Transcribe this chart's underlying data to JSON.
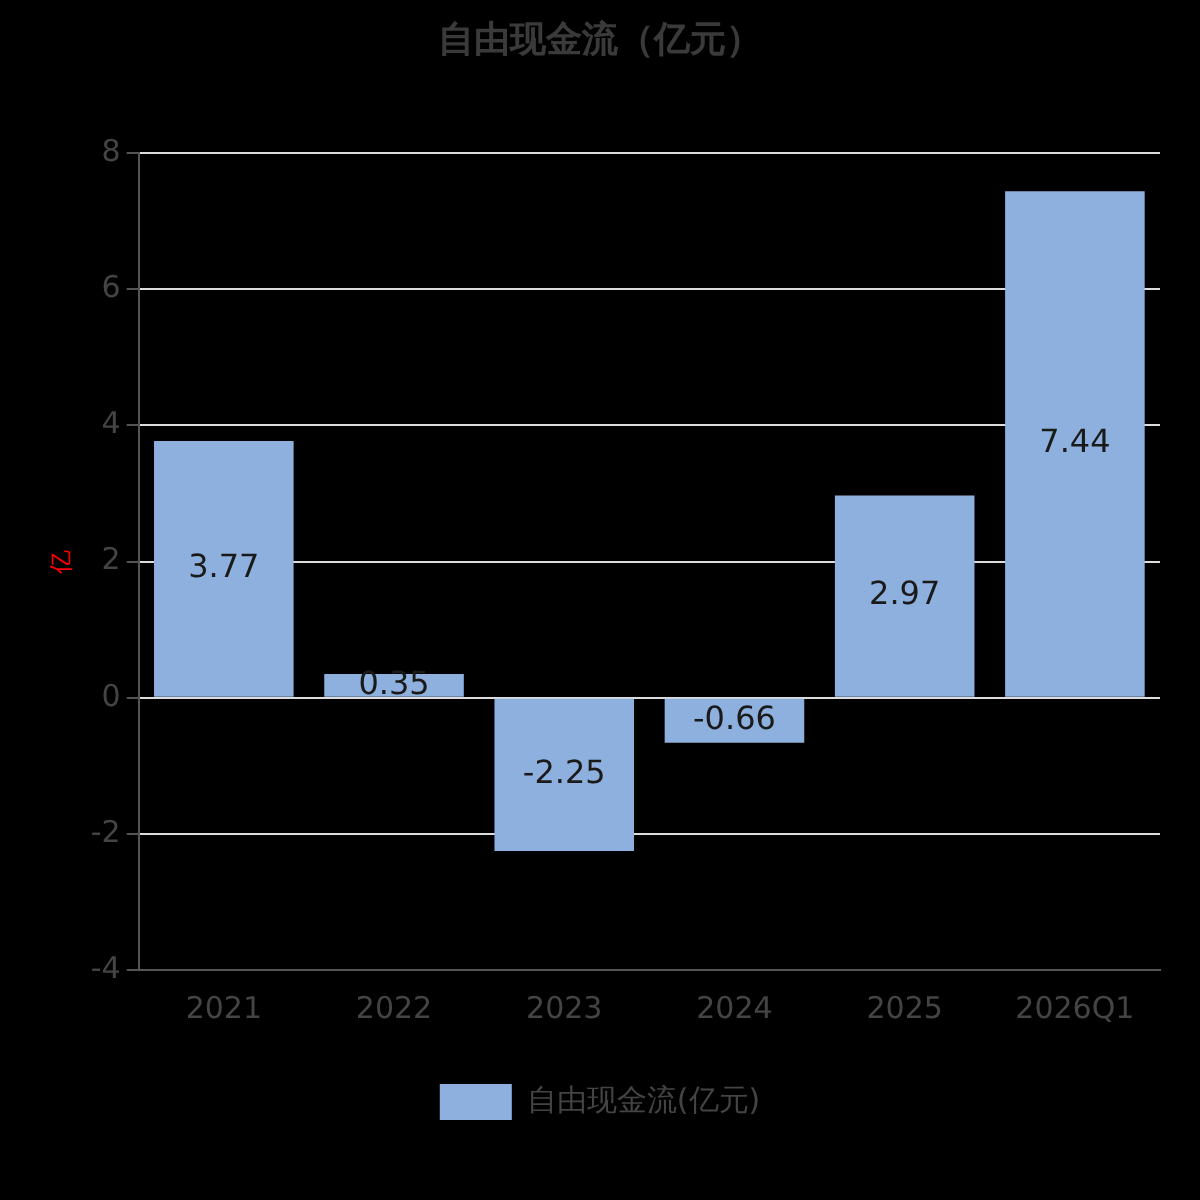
{
  "chart_data": {
    "type": "bar",
    "title": "自由现金流（亿元）",
    "ylabel": "亿",
    "categories": [
      "2021",
      "2022",
      "2023",
      "2024",
      "2025",
      "2026Q1"
    ],
    "series": [
      {
        "name": "自由现金流(亿元)",
        "color": "#8eb0de",
        "values": [
          3.77,
          0.35,
          -2.25,
          -0.66,
          2.97,
          7.44
        ]
      }
    ],
    "ylim": [
      -4,
      8
    ],
    "yticks": [
      -4,
      -2,
      0,
      2,
      4,
      6,
      8
    ],
    "grid": "y",
    "legend": "bottom",
    "data_labels": true
  }
}
